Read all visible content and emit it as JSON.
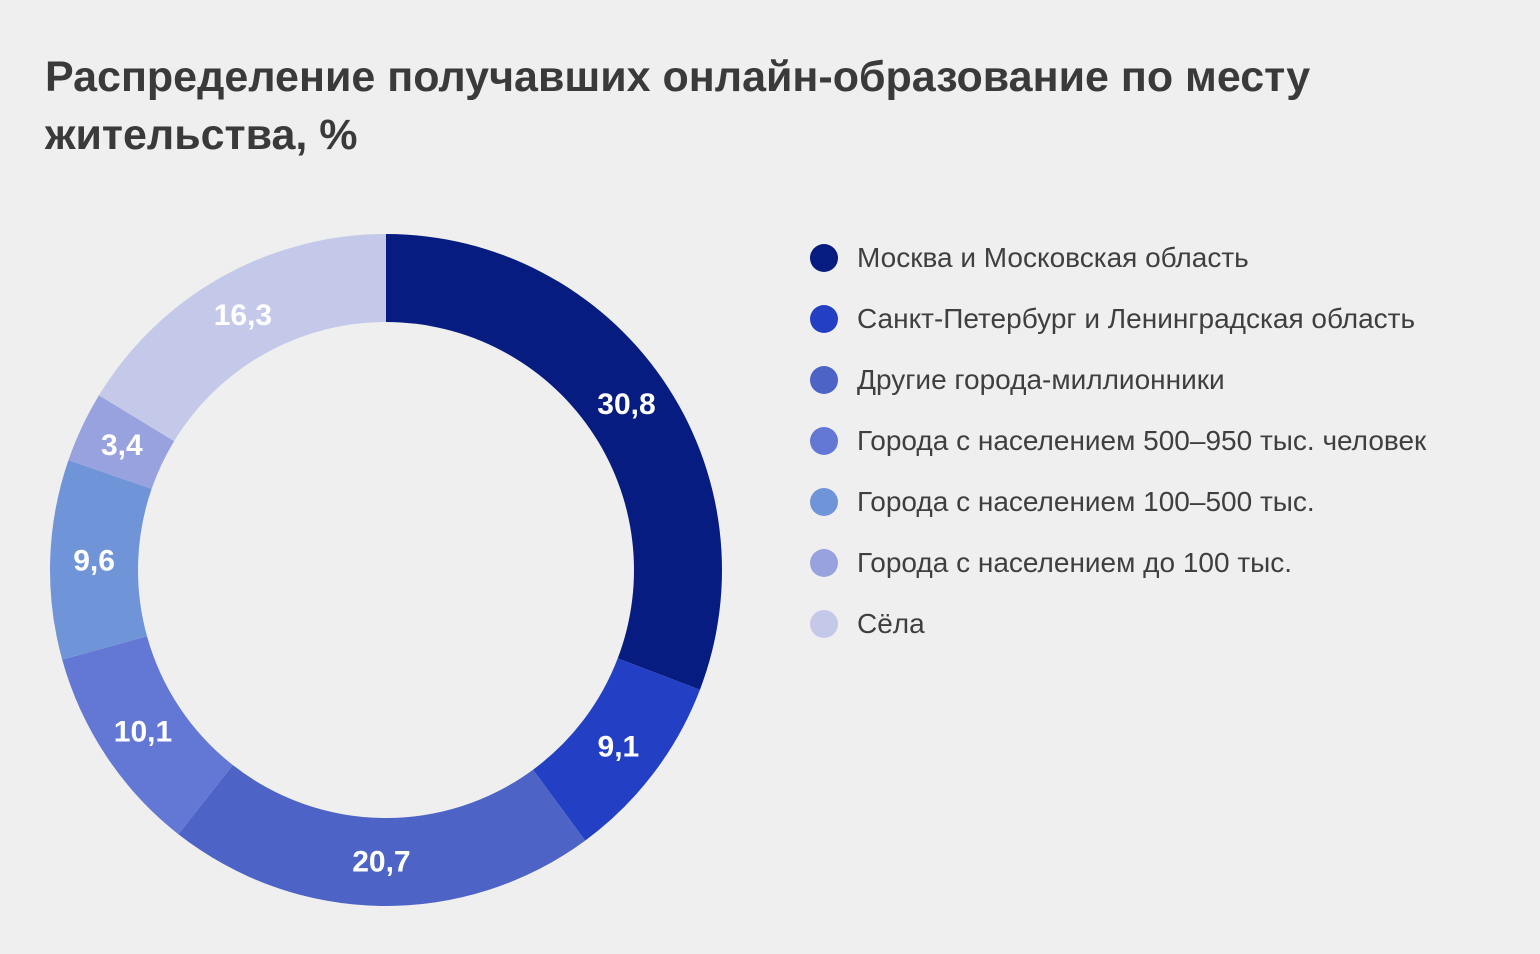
{
  "chart_data": {
    "type": "pie",
    "donut": true,
    "title": "Распределение получавших онлайн-образование по месту жительства, %",
    "categories": [
      "Москва и Московская область",
      "Санкт-Петербург и Ленинградская область",
      "Другие города-миллионники",
      "Города с населением 500–950 тыс. человек",
      "Города с населением 100–500 тыс.",
      "Города с населением до 100 тыс.",
      "Сёла"
    ],
    "values": [
      30.8,
      9.1,
      20.7,
      10.1,
      9.6,
      3.4,
      16.3
    ],
    "value_labels": [
      "30,8",
      "9,1",
      "20,7",
      "10,1",
      "9,6",
      "3,4",
      "16,3"
    ],
    "colors": [
      "#071c80",
      "#2340c4",
      "#4d63c6",
      "#6378d5",
      "#7094d8",
      "#97a2df",
      "#c4c9e9"
    ],
    "start_angle_deg": 0,
    "direction": "clockwise",
    "legend_position": "right",
    "background_color": "#efefef",
    "value_label_color": "#ffffff",
    "title_color": "#3a3a3a",
    "legend_text_color": "#3f3f3f"
  }
}
